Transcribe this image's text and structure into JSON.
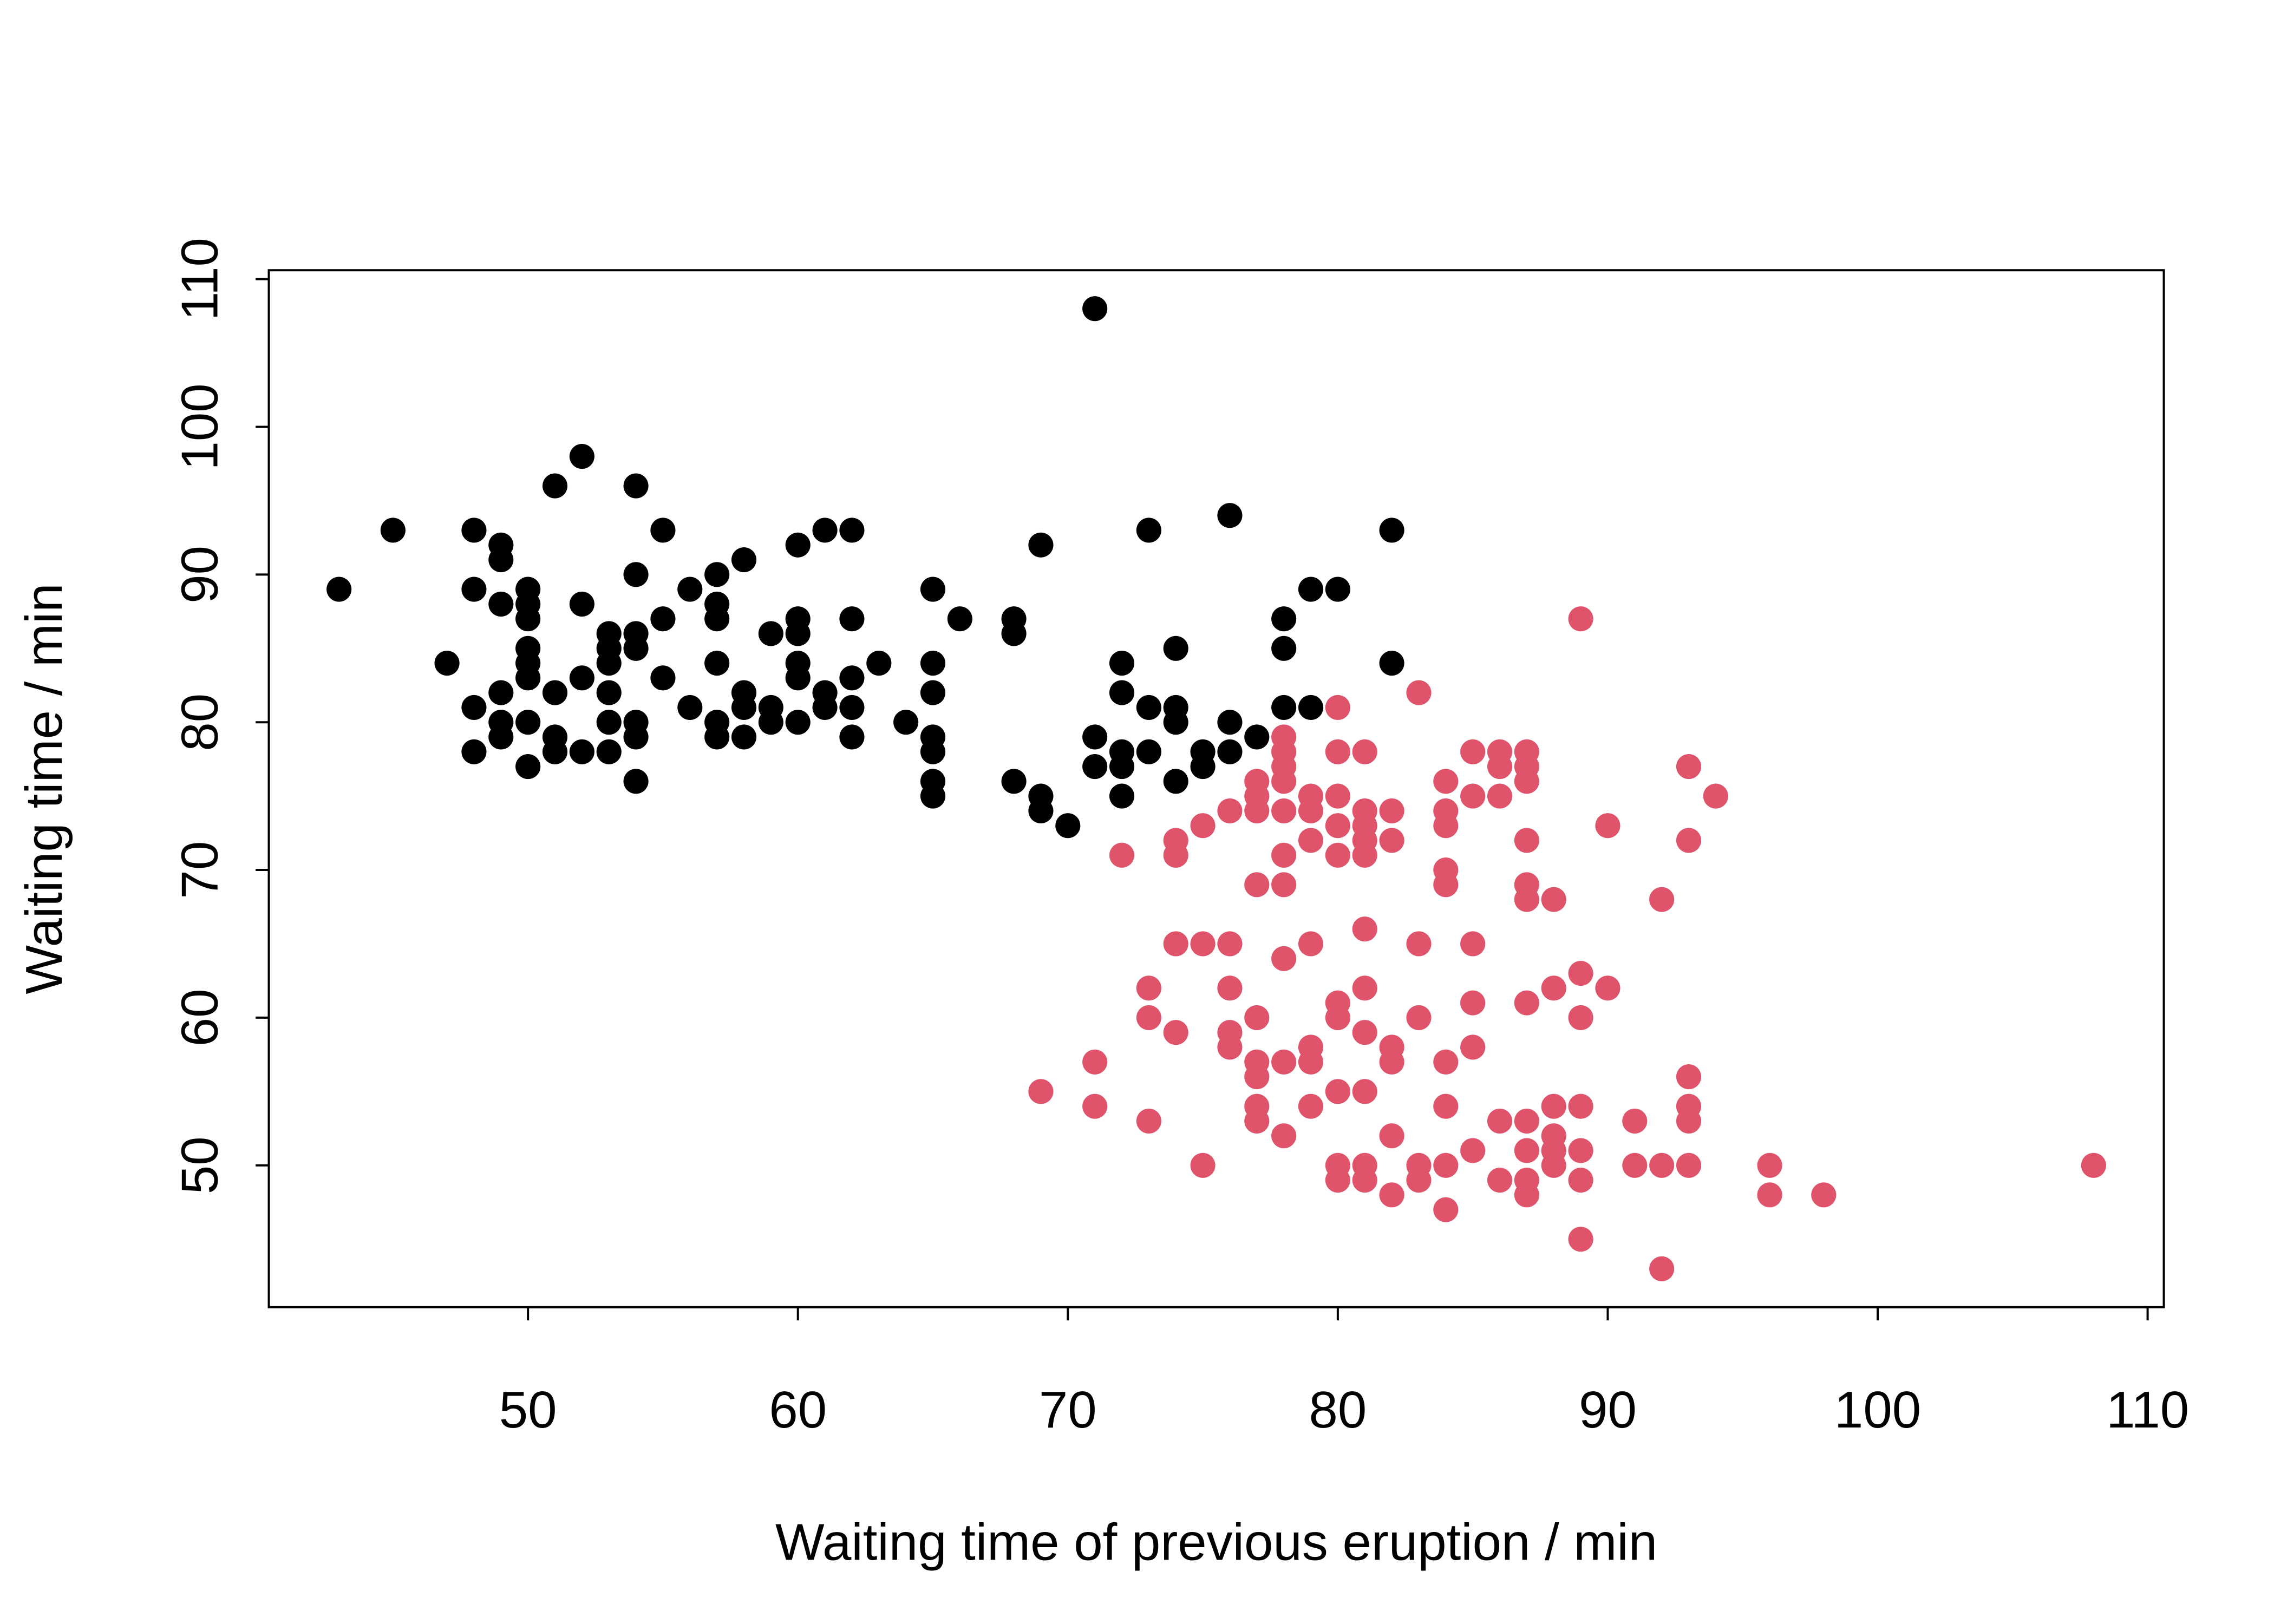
{
  "chart_data": {
    "type": "scatter",
    "title": "",
    "xlabel": "Waiting time of previous eruption / min",
    "ylabel": "Waiting time / min",
    "xlim": [
      43,
      108
    ],
    "ylim": [
      43,
      108
    ],
    "x_ticks": [
      50,
      60,
      70,
      80,
      90,
      100,
      110
    ],
    "y_ticks": [
      50,
      60,
      70,
      80,
      90,
      100,
      110
    ],
    "x_tick_labels": [
      "50",
      "60",
      "70",
      "80",
      "90",
      "100",
      "110"
    ],
    "y_tick_labels": [
      "50",
      "60",
      "70",
      "80",
      "90",
      "100",
      "110"
    ],
    "grid": false,
    "legend": "none",
    "series": [
      {
        "color": "#000000",
        "points": [
          [
            43,
            89
          ],
          [
            45,
            93
          ],
          [
            47,
            84
          ],
          [
            48,
            93
          ],
          [
            48,
            89
          ],
          [
            48,
            81
          ],
          [
            48,
            78
          ],
          [
            49,
            92
          ],
          [
            49,
            91
          ],
          [
            49,
            88
          ],
          [
            49,
            82
          ],
          [
            49,
            80
          ],
          [
            49,
            79
          ],
          [
            50,
            89
          ],
          [
            50,
            88
          ],
          [
            50,
            87
          ],
          [
            50,
            85
          ],
          [
            50,
            84
          ],
          [
            50,
            83
          ],
          [
            50,
            80
          ],
          [
            50,
            77
          ],
          [
            51,
            96
          ],
          [
            51,
            82
          ],
          [
            51,
            79
          ],
          [
            51,
            78
          ],
          [
            52,
            98
          ],
          [
            52,
            88
          ],
          [
            52,
            83
          ],
          [
            52,
            78
          ],
          [
            53,
            86
          ],
          [
            53,
            85
          ],
          [
            53,
            84
          ],
          [
            53,
            82
          ],
          [
            53,
            80
          ],
          [
            53,
            78
          ],
          [
            54,
            96
          ],
          [
            54,
            90
          ],
          [
            54,
            86
          ],
          [
            54,
            85
          ],
          [
            54,
            80
          ],
          [
            54,
            79
          ],
          [
            54,
            76
          ],
          [
            55,
            93
          ],
          [
            55,
            87
          ],
          [
            55,
            83
          ],
          [
            56,
            89
          ],
          [
            56,
            81
          ],
          [
            57,
            90
          ],
          [
            57,
            88
          ],
          [
            57,
            87
          ],
          [
            57,
            84
          ],
          [
            57,
            80
          ],
          [
            57,
            79
          ],
          [
            58,
            91
          ],
          [
            58,
            82
          ],
          [
            58,
            81
          ],
          [
            58,
            79
          ],
          [
            59,
            86
          ],
          [
            59,
            81
          ],
          [
            59,
            80
          ],
          [
            60,
            92
          ],
          [
            60,
            87
          ],
          [
            60,
            86
          ],
          [
            60,
            84
          ],
          [
            60,
            83
          ],
          [
            60,
            80
          ],
          [
            61,
            93
          ],
          [
            61,
            82
          ],
          [
            61,
            81
          ],
          [
            62,
            93
          ],
          [
            62,
            87
          ],
          [
            62,
            83
          ],
          [
            62,
            81
          ],
          [
            62,
            79
          ],
          [
            63,
            84
          ],
          [
            64,
            80
          ],
          [
            65,
            89
          ],
          [
            65,
            84
          ],
          [
            65,
            82
          ],
          [
            65,
            79
          ],
          [
            65,
            78
          ],
          [
            65,
            76
          ],
          [
            65,
            75
          ],
          [
            66,
            87
          ],
          [
            68,
            87
          ],
          [
            68,
            86
          ],
          [
            68,
            76
          ],
          [
            69,
            92
          ],
          [
            69,
            75
          ],
          [
            69,
            74
          ],
          [
            70,
            73
          ],
          [
            71,
            108
          ],
          [
            71,
            79
          ],
          [
            71,
            77
          ],
          [
            72,
            84
          ],
          [
            72,
            82
          ],
          [
            72,
            78
          ],
          [
            72,
            77
          ],
          [
            72,
            75
          ],
          [
            73,
            93
          ],
          [
            73,
            81
          ],
          [
            73,
            78
          ],
          [
            74,
            85
          ],
          [
            74,
            81
          ],
          [
            74,
            80
          ],
          [
            74,
            76
          ],
          [
            75,
            78
          ],
          [
            75,
            77
          ],
          [
            76,
            94
          ],
          [
            76,
            80
          ],
          [
            76,
            78
          ],
          [
            77,
            79
          ],
          [
            78,
            87
          ],
          [
            78,
            85
          ],
          [
            78,
            81
          ],
          [
            79,
            89
          ],
          [
            79,
            81
          ],
          [
            80,
            89
          ],
          [
            82,
            93
          ],
          [
            82,
            84
          ]
        ]
      },
      {
        "color": "#DF536B",
        "points": [
          [
            69,
            55
          ],
          [
            71,
            57
          ],
          [
            71,
            54
          ],
          [
            72,
            71
          ],
          [
            73,
            62
          ],
          [
            73,
            60
          ],
          [
            73,
            53
          ],
          [
            74,
            72
          ],
          [
            74,
            71
          ],
          [
            74,
            65
          ],
          [
            74,
            59
          ],
          [
            75,
            73
          ],
          [
            75,
            65
          ],
          [
            75,
            50
          ],
          [
            76,
            74
          ],
          [
            76,
            65
          ],
          [
            76,
            62
          ],
          [
            76,
            59
          ],
          [
            76,
            58
          ],
          [
            77,
            76
          ],
          [
            77,
            75
          ],
          [
            77,
            74
          ],
          [
            77,
            69
          ],
          [
            77,
            60
          ],
          [
            77,
            57
          ],
          [
            77,
            56
          ],
          [
            77,
            54
          ],
          [
            77,
            53
          ],
          [
            78,
            79
          ],
          [
            78,
            78
          ],
          [
            78,
            77
          ],
          [
            78,
            76
          ],
          [
            78,
            74
          ],
          [
            78,
            71
          ],
          [
            78,
            69
          ],
          [
            78,
            64
          ],
          [
            78,
            57
          ],
          [
            78,
            52
          ],
          [
            79,
            75
          ],
          [
            79,
            74
          ],
          [
            79,
            72
          ],
          [
            79,
            65
          ],
          [
            79,
            58
          ],
          [
            79,
            57
          ],
          [
            79,
            54
          ],
          [
            80,
            81
          ],
          [
            80,
            78
          ],
          [
            80,
            75
          ],
          [
            80,
            73
          ],
          [
            80,
            71
          ],
          [
            80,
            61
          ],
          [
            80,
            60
          ],
          [
            80,
            55
          ],
          [
            80,
            50
          ],
          [
            80,
            49
          ],
          [
            81,
            78
          ],
          [
            81,
            74
          ],
          [
            81,
            73
          ],
          [
            81,
            72
          ],
          [
            81,
            71
          ],
          [
            81,
            66
          ],
          [
            81,
            62
          ],
          [
            81,
            59
          ],
          [
            81,
            55
          ],
          [
            81,
            50
          ],
          [
            81,
            49
          ],
          [
            82,
            74
          ],
          [
            82,
            72
          ],
          [
            82,
            58
          ],
          [
            82,
            57
          ],
          [
            82,
            52
          ],
          [
            82,
            48
          ],
          [
            83,
            82
          ],
          [
            83,
            65
          ],
          [
            83,
            60
          ],
          [
            83,
            50
          ],
          [
            83,
            49
          ],
          [
            84,
            76
          ],
          [
            84,
            74
          ],
          [
            84,
            73
          ],
          [
            84,
            70
          ],
          [
            84,
            69
          ],
          [
            84,
            57
          ],
          [
            84,
            54
          ],
          [
            84,
            50
          ],
          [
            84,
            47
          ],
          [
            85,
            78
          ],
          [
            85,
            75
          ],
          [
            85,
            65
          ],
          [
            85,
            61
          ],
          [
            85,
            58
          ],
          [
            85,
            51
          ],
          [
            86,
            78
          ],
          [
            86,
            77
          ],
          [
            86,
            75
          ],
          [
            86,
            53
          ],
          [
            86,
            49
          ],
          [
            87,
            78
          ],
          [
            87,
            77
          ],
          [
            87,
            76
          ],
          [
            87,
            72
          ],
          [
            87,
            69
          ],
          [
            87,
            68
          ],
          [
            87,
            61
          ],
          [
            87,
            53
          ],
          [
            87,
            51
          ],
          [
            87,
            49
          ],
          [
            87,
            48
          ],
          [
            88,
            68
          ],
          [
            88,
            62
          ],
          [
            88,
            54
          ],
          [
            88,
            52
          ],
          [
            88,
            51
          ],
          [
            88,
            50
          ],
          [
            89,
            87
          ],
          [
            89,
            63
          ],
          [
            89,
            60
          ],
          [
            89,
            54
          ],
          [
            89,
            51
          ],
          [
            89,
            49
          ],
          [
            89,
            45
          ],
          [
            90,
            73
          ],
          [
            90,
            62
          ],
          [
            91,
            53
          ],
          [
            91,
            50
          ],
          [
            92,
            68
          ],
          [
            92,
            50
          ],
          [
            92,
            43
          ],
          [
            93,
            77
          ],
          [
            93,
            72
          ],
          [
            93,
            56
          ],
          [
            93,
            54
          ],
          [
            93,
            53
          ],
          [
            93,
            50
          ],
          [
            94,
            75
          ],
          [
            96,
            50
          ],
          [
            96,
            48
          ],
          [
            98,
            48
          ],
          [
            108,
            50
          ]
        ]
      }
    ]
  }
}
